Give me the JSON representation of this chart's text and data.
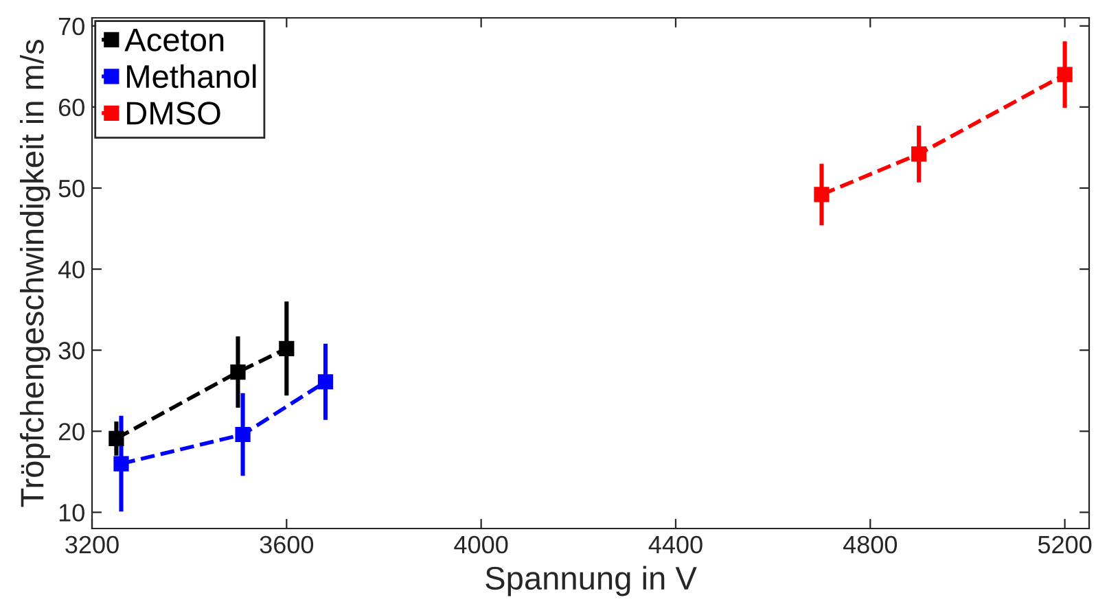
{
  "chart_data": {
    "type": "line",
    "xlabel": "Spannung in V",
    "ylabel": "Tröpfchengeschwindigkeit in m/s",
    "xlim": [
      3200,
      5250
    ],
    "xticks": [
      3200,
      3600,
      4000,
      4400,
      4800,
      5200
    ],
    "ylim": [
      8,
      71
    ],
    "yticks": [
      10,
      20,
      30,
      40,
      50,
      60,
      70
    ],
    "marker": "square",
    "line_style": "dashed",
    "legend": "top left",
    "grid": false,
    "series": [
      {
        "name": "Aceton",
        "color": "#000000",
        "x": [
          3250,
          3500,
          3600
        ],
        "values": [
          19.1,
          27.3,
          30.2
        ],
        "errors": [
          2.1,
          4.4,
          5.8
        ]
      },
      {
        "name": "Methanol",
        "color": "#0000ff",
        "x": [
          3260,
          3510,
          3680
        ],
        "values": [
          16.0,
          19.6,
          26.1
        ],
        "errors": [
          5.9,
          5.1,
          4.7
        ]
      },
      {
        "name": "DMSO",
        "color": "#ff0000",
        "x": [
          4700,
          4900,
          5200
        ],
        "values": [
          49.2,
          54.2,
          64.0
        ],
        "errors": [
          3.8,
          3.5,
          4.1
        ]
      }
    ]
  }
}
